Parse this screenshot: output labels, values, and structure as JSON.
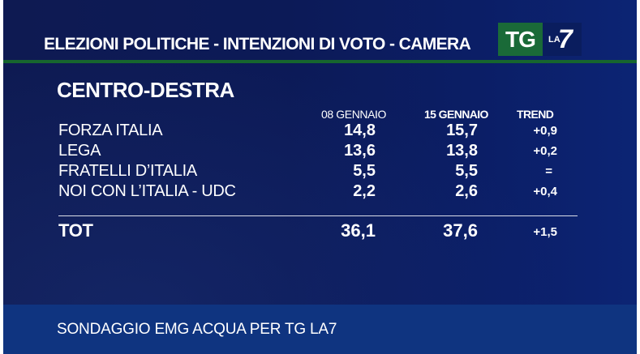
{
  "header": {
    "title": "ELEZIONI POLITICHE - INTENZIONI DI VOTO - CAMERA",
    "logo_tg": "TG",
    "logo_la": "LA",
    "logo_seven": "7"
  },
  "table": {
    "section_title": "CENTRO-DESTRA",
    "columns": [
      "08 GENNAIO",
      "15 GENNAIO",
      "TREND"
    ],
    "rows": [
      {
        "label": "FORZA ITALIA",
        "v1": "14,8",
        "v2": "15,7",
        "trend": "+0,9"
      },
      {
        "label": "LEGA",
        "v1": "13,6",
        "v2": "13,8",
        "trend": "+0,2"
      },
      {
        "label": "FRATELLI D’ITALIA",
        "v1": "5,5",
        "v2": "5,5",
        "trend": "="
      },
      {
        "label": "NOI CON L’ITALIA - UDC",
        "v1": "2,2",
        "v2": "2,6",
        "trend": "+0,4"
      }
    ],
    "total": {
      "label": "TOT",
      "v1": "36,1",
      "v2": "37,6",
      "trend": "+1,5"
    }
  },
  "footer": {
    "source": "SONDAGGIO EMG ACQUA PER TG LA7"
  },
  "colors": {
    "background": "#0c1a57",
    "accent_green": "#17662e",
    "footer_band": "#0f3480"
  }
}
